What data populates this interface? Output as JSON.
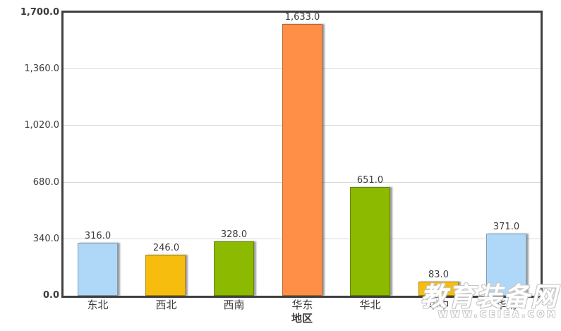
{
  "chart_data": {
    "type": "bar",
    "title": "",
    "xlabel": "地区",
    "ylabel": "",
    "categories": [
      "东北",
      "西北",
      "西南",
      "华东",
      "华北",
      "华中",
      "华南"
    ],
    "values": [
      316,
      246,
      328,
      1633,
      651,
      83,
      371
    ],
    "value_labels": [
      "316.0",
      "246.0",
      "328.0",
      "1,633.0",
      "651.0",
      "83.0",
      "371.0"
    ],
    "bar_colors": [
      "#AFD8F8",
      "#F6BD0F",
      "#8BBA00",
      "#FF8E46",
      "#8BBA00",
      "#F6BD0F",
      "#AFD8F8"
    ],
    "ylim": [
      0,
      1700
    ],
    "yticks": [
      0,
      340,
      680,
      1020,
      1360,
      1700
    ],
    "ytick_labels": [
      "0.0",
      "340.0",
      "680.0",
      "1,020.0",
      "1,360.0",
      "1,700.0"
    ],
    "grid": true,
    "legend": false
  },
  "colors": {
    "axis": "#3F3F3F",
    "gridline": "#D9D9D9",
    "text": "#3B3B3B",
    "background": "#FFFFFF"
  },
  "watermark": {
    "text": "教育装备网",
    "url": "WWW.CEIEA.COM"
  }
}
